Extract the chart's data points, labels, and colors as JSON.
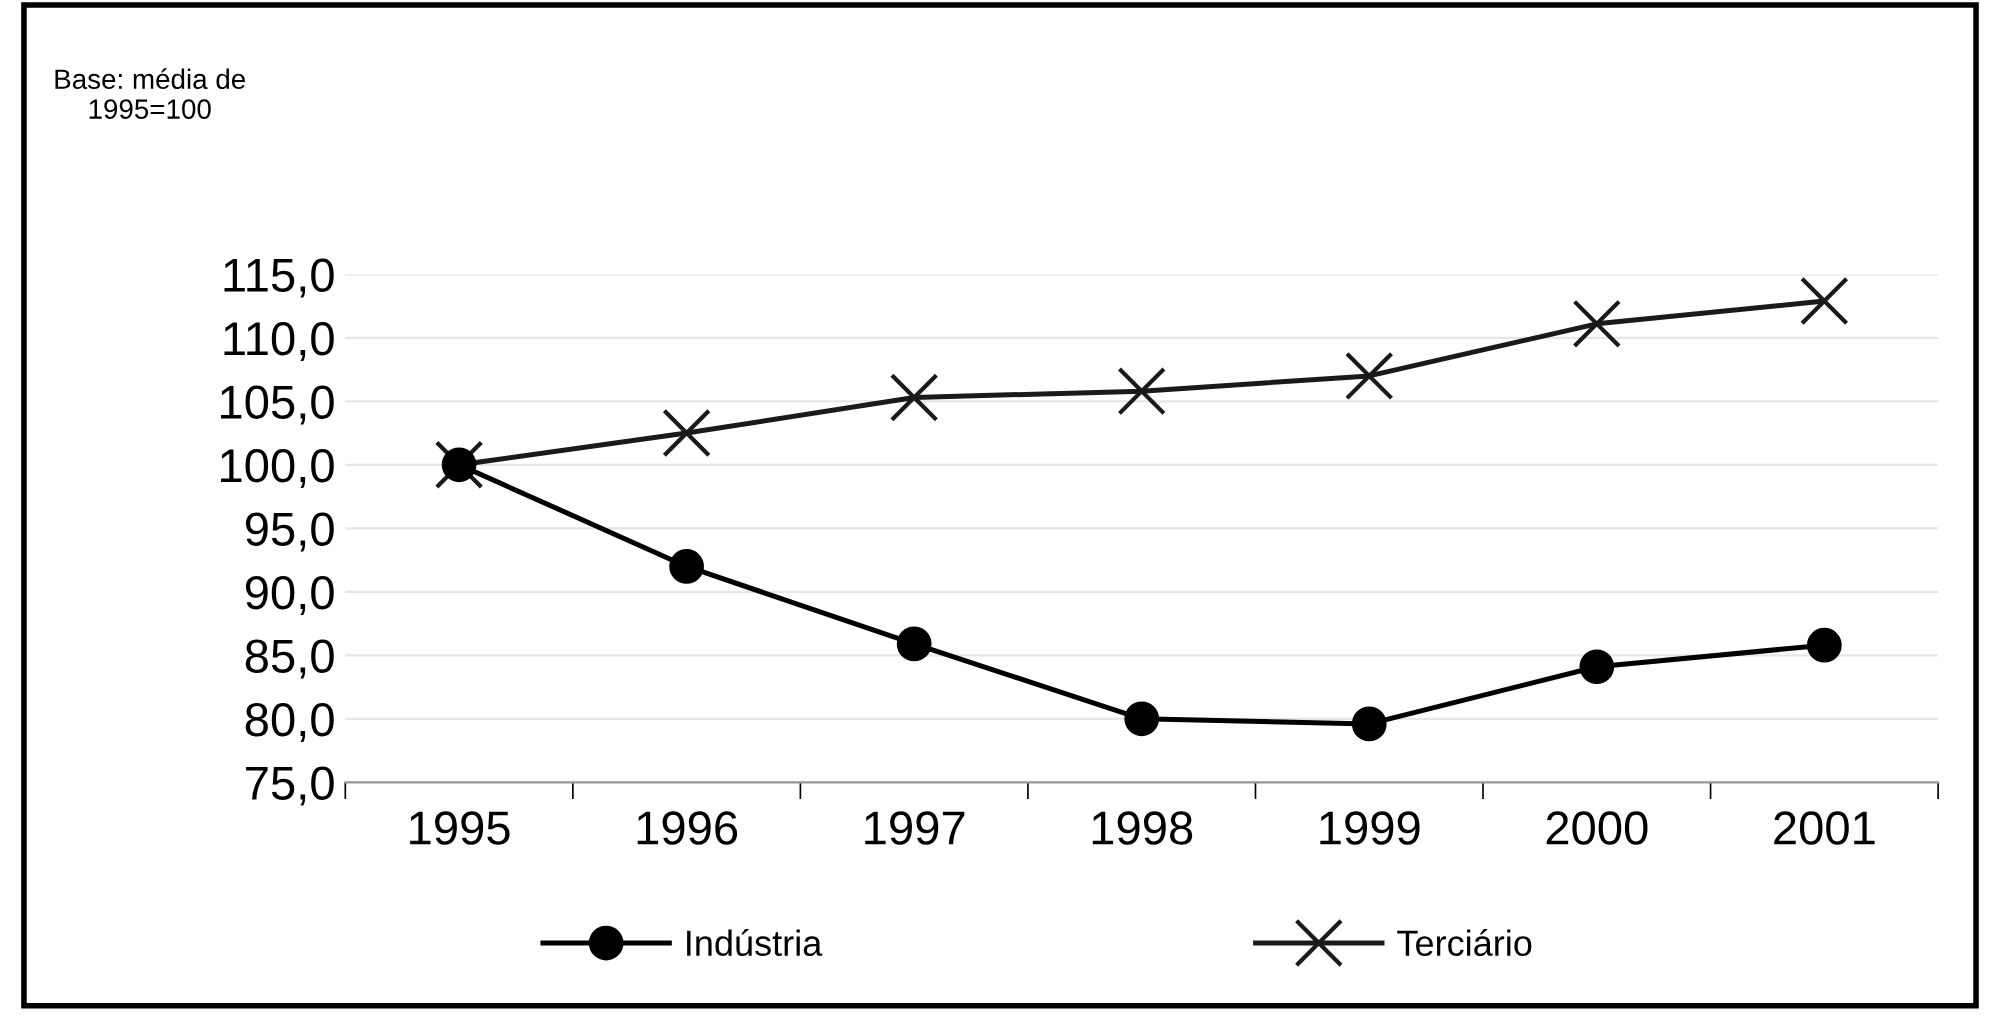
{
  "chart_data": {
    "type": "line",
    "annotations": [
      "Base: média de\n1995=100"
    ],
    "categories": [
      "1995",
      "1996",
      "1997",
      "1998",
      "1999",
      "2000",
      "2001"
    ],
    "series": [
      {
        "name": "Indústria",
        "color": "#000000",
        "marker": "circle",
        "values": [
          100.0,
          92.0,
          85.9,
          80.0,
          79.6,
          84.1,
          85.8
        ]
      },
      {
        "name": "Terciário",
        "color": "#1a1a1a",
        "marker": "cross",
        "values": [
          100.0,
          102.5,
          105.3,
          105.8,
          107.0,
          111.1,
          112.9
        ]
      }
    ],
    "ylim": [
      75,
      115
    ],
    "yticks": [
      {
        "value": 75,
        "label": "75,0"
      },
      {
        "value": 80,
        "label": "80,0"
      },
      {
        "value": 85,
        "label": "85,0"
      },
      {
        "value": 90,
        "label": "90,0"
      },
      {
        "value": 95,
        "label": "95,0"
      },
      {
        "value": 100,
        "label": "100,0"
      },
      {
        "value": 105,
        "label": "105,0"
      },
      {
        "value": 110,
        "label": "110,0"
      },
      {
        "value": 115,
        "label": "115,0"
      }
    ],
    "grid": "y",
    "legend": "bottom",
    "line_style": "solid"
  }
}
